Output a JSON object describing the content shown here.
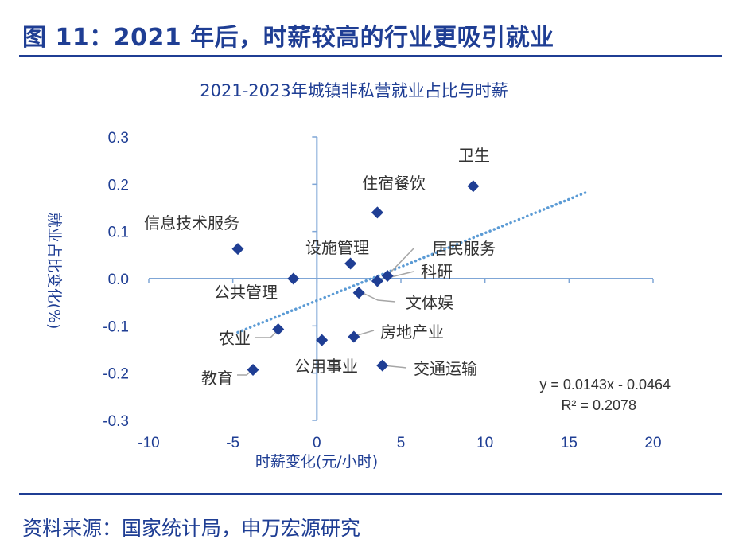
{
  "figure_title": "图 11：2021 年后，时薪较高的行业更吸引就业",
  "source_note": "资料来源：国家统计局，申万宏源研究",
  "chart_data": {
    "type": "scatter",
    "title": "2021-2023年城镇非私营就业占比与时薪",
    "xlabel": "时薪变化(元/小时)",
    "ylabel": "就业占比变化(%)",
    "xlim": [
      -10,
      20
    ],
    "ylim": [
      -0.3,
      0.3
    ],
    "x_ticks": [
      -10,
      -5,
      0,
      5,
      10,
      15,
      20
    ],
    "y_ticks": [
      0.3,
      0.2,
      0.1,
      0.0,
      -0.1,
      -0.2,
      -0.3
    ],
    "x_tick_labels": [
      "-10",
      "-5",
      "0",
      "5",
      "10",
      "15",
      "20"
    ],
    "y_tick_labels": [
      "0.3",
      "0.2",
      "0.1",
      "0.0",
      "-0.1",
      "-0.2",
      "-0.3"
    ],
    "marker_color": "#1F3E94",
    "trendline_color": "#5B9BD5",
    "points": [
      {
        "label": "卫生",
        "x": 9.3,
        "y": 0.196
      },
      {
        "label": "住宿餐饮",
        "x": 3.6,
        "y": 0.14
      },
      {
        "label": "信息技术服务",
        "x": -4.7,
        "y": 0.063
      },
      {
        "label": "设施管理",
        "x": 2.0,
        "y": 0.032
      },
      {
        "label": "居民服务",
        "x": 4.2,
        "y": 0.006
      },
      {
        "label": "科研",
        "x": 3.6,
        "y": -0.005
      },
      {
        "label": "公共管理",
        "x": -1.4,
        "y": 0.0
      },
      {
        "label": "文体娱",
        "x": 2.5,
        "y": -0.03
      },
      {
        "label": "农业",
        "x": -2.3,
        "y": -0.107
      },
      {
        "label": "房地产业",
        "x": 2.2,
        "y": -0.123
      },
      {
        "label": "公用事业",
        "x": 0.3,
        "y": -0.13
      },
      {
        "label": "交通运输",
        "x": 3.9,
        "y": -0.184
      },
      {
        "label": "教育",
        "x": -3.8,
        "y": -0.193
      }
    ],
    "trendline": {
      "type": "linear",
      "slope": 0.0143,
      "intercept": -0.0464,
      "x_range": [
        -4.7,
        16
      ],
      "equation_text": "y = 0.0143x - 0.0464",
      "r2_text": "R² = 0.2078"
    }
  }
}
